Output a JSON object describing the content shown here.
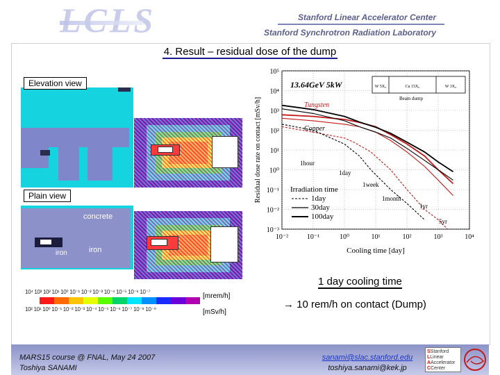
{
  "header": {
    "logo_text": "LCLS",
    "org_line1": "Stanford Linear Accelerator Center",
    "org_line2": "Stanford Synchrotron Radiation Laboratory"
  },
  "slide": {
    "title": "4. Result – residual dose of the dump",
    "elevation_label": "Elevation view",
    "plain_label": "Plain view",
    "concrete_label": "concrete",
    "iron_label_1": "iron",
    "iron_label_2": "iron",
    "cooling_heading": "1 day cooling time",
    "contact_result": "→ 10 rem/h on contact (Dump)"
  },
  "color_scale": {
    "mrem_ticks": "10⁴ 10³ 10² 10¹ 10⁰ 10⁻¹ 10⁻² 10⁻³ 10⁻⁴ 10⁻⁵ 10⁻⁶ 10⁻⁷",
    "msv_ticks": "10² 10¹ 10⁰ 10⁻¹ 10⁻² 10⁻³ 10⁻⁴ 10⁻⁵ 10⁻⁶ 10⁻⁷ 10⁻⁸ 10⁻⁹",
    "mrem_unit": "[mrem/h]",
    "msv_unit": "[mSv/h]",
    "colors": [
      "#ffffff",
      "#ff1a1a",
      "#ff6a00",
      "#ffc400",
      "#e6ff00",
      "#59ff00",
      "#00d46a",
      "#00e5ff",
      "#0090ff",
      "#1a2bff",
      "#6a00d9",
      "#b000b0"
    ]
  },
  "footer": {
    "left_line1": "MARS15 course @ FNAL, May 24 2007",
    "left_line2": "Toshiya SANAMI",
    "right_line1": "sanami@slac.stanford.edu",
    "right_line2": "toshiya.sanami@kek.jp",
    "logo_lines": [
      "Stanford",
      "Linear",
      "Accelerator",
      "Center"
    ]
  },
  "chart_data": {
    "type": "line",
    "title": "13.64GeV 5kW",
    "xlabel": "Cooling time [day]",
    "ylabel": "Residual dose rate on contact [mSv/h]",
    "xscale": "log",
    "yscale": "log",
    "xlim": [
      0.01,
      10000
    ],
    "ylim": [
      0.001,
      100000
    ],
    "x_ticks": [
      "10⁻²",
      "10⁻¹",
      "10⁰",
      "10¹",
      "10²",
      "10³",
      "10⁴"
    ],
    "y_ticks": [
      "10⁻³",
      "10⁻²",
      "10⁻¹",
      "10⁰",
      "10¹",
      "10²",
      "10³",
      "10⁴",
      "10⁵"
    ],
    "material_labels": [
      "Tungsten",
      "Copper"
    ],
    "time_annotations": [
      "1hour",
      "1day",
      "1week",
      "1month",
      "1yr",
      "5yr"
    ],
    "legend_title": "Irradiation time",
    "legend": [
      "1day",
      "30day",
      "100day"
    ],
    "legend_placement": "bottom-left",
    "inset": {
      "cells": [
        "W 5X₀",
        "Cu 15X₀",
        "W 3X₀"
      ],
      "caption": "Beam dump"
    },
    "series": [
      {
        "name": "1day",
        "material": "Tungsten",
        "style": "dashed",
        "x": [
          0.01,
          0.1,
          1,
          2,
          7,
          30,
          100,
          365,
          1000,
          2000
        ],
        "y": [
          150,
          80,
          40,
          25,
          8,
          1,
          0.1,
          0.01,
          0.003,
          0.001
        ]
      },
      {
        "name": "30day",
        "material": "Tungsten",
        "style": "solid",
        "x": [
          0.01,
          0.1,
          1,
          3,
          10,
          30,
          100,
          365,
          1000,
          3000
        ],
        "y": [
          400,
          300,
          200,
          150,
          80,
          30,
          8,
          1.5,
          0.3,
          0.05
        ]
      },
      {
        "name": "100day",
        "material": "Tungsten",
        "style": "solid",
        "x": [
          0.01,
          0.1,
          1,
          3,
          10,
          30,
          100,
          365,
          1000,
          3000
        ],
        "y": [
          600,
          500,
          350,
          250,
          150,
          60,
          20,
          5,
          1,
          0.2
        ]
      },
      {
        "name": "1day",
        "material": "Copper",
        "style": "dashed",
        "x": [
          0.01,
          0.1,
          1,
          3,
          7,
          30,
          100,
          365
        ],
        "y": [
          200,
          100,
          20,
          5,
          1,
          0.1,
          0.02,
          0.003
        ]
      },
      {
        "name": "30day",
        "material": "Copper",
        "style": "solid",
        "x": [
          0.01,
          0.1,
          1,
          3,
          10,
          30,
          100,
          365,
          1000,
          3000
        ],
        "y": [
          1200,
          700,
          300,
          150,
          80,
          40,
          12,
          3,
          1,
          0.3
        ]
      },
      {
        "name": "100day",
        "material": "Copper",
        "style": "solid",
        "x": [
          0.01,
          0.1,
          1,
          3,
          10,
          30,
          100,
          365,
          1000,
          3000
        ],
        "y": [
          1800,
          1100,
          500,
          260,
          140,
          70,
          25,
          8,
          2.5,
          0.8
        ]
      }
    ]
  }
}
